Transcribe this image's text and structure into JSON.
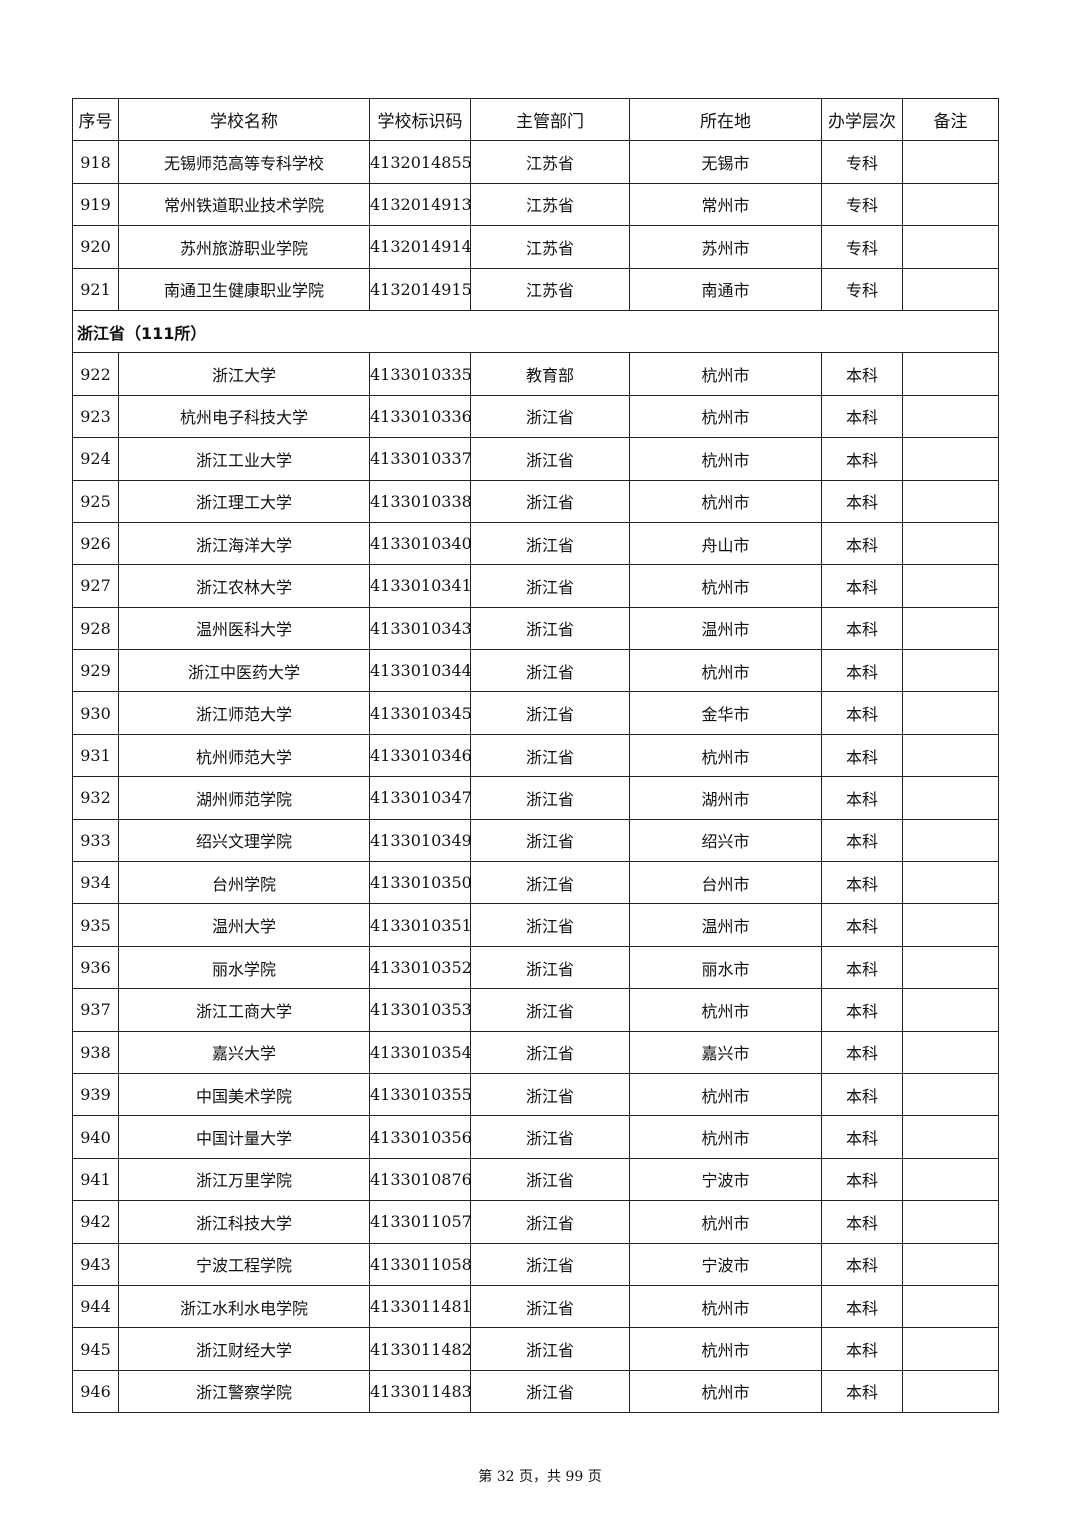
{
  "table": {
    "headers": [
      "序号",
      "学校名称",
      "学校标识码",
      "主管部门",
      "所在地",
      "办学层次",
      "备注"
    ],
    "rows_before": [
      [
        "918",
        "无锡师范高等专科学校",
        "4132014855",
        "江苏省",
        "无锡市",
        "专科",
        ""
      ],
      [
        "919",
        "常州铁道职业技术学院",
        "4132014913",
        "江苏省",
        "常州市",
        "专科",
        ""
      ],
      [
        "920",
        "苏州旅游职业学院",
        "4132014914",
        "江苏省",
        "苏州市",
        "专科",
        ""
      ],
      [
        "921",
        "南通卫生健康职业学院",
        "4132014915",
        "江苏省",
        "南通市",
        "专科",
        ""
      ]
    ],
    "section": "浙江省（111所）",
    "rows_after": [
      [
        "922",
        "浙江大学",
        "4133010335",
        "教育部",
        "杭州市",
        "本科",
        ""
      ],
      [
        "923",
        "杭州电子科技大学",
        "4133010336",
        "浙江省",
        "杭州市",
        "本科",
        ""
      ],
      [
        "924",
        "浙江工业大学",
        "4133010337",
        "浙江省",
        "杭州市",
        "本科",
        ""
      ],
      [
        "925",
        "浙江理工大学",
        "4133010338",
        "浙江省",
        "杭州市",
        "本科",
        ""
      ],
      [
        "926",
        "浙江海洋大学",
        "4133010340",
        "浙江省",
        "舟山市",
        "本科",
        ""
      ],
      [
        "927",
        "浙江农林大学",
        "4133010341",
        "浙江省",
        "杭州市",
        "本科",
        ""
      ],
      [
        "928",
        "温州医科大学",
        "4133010343",
        "浙江省",
        "温州市",
        "本科",
        ""
      ],
      [
        "929",
        "浙江中医药大学",
        "4133010344",
        "浙江省",
        "杭州市",
        "本科",
        ""
      ],
      [
        "930",
        "浙江师范大学",
        "4133010345",
        "浙江省",
        "金华市",
        "本科",
        ""
      ],
      [
        "931",
        "杭州师范大学",
        "4133010346",
        "浙江省",
        "杭州市",
        "本科",
        ""
      ],
      [
        "932",
        "湖州师范学院",
        "4133010347",
        "浙江省",
        "湖州市",
        "本科",
        ""
      ],
      [
        "933",
        "绍兴文理学院",
        "4133010349",
        "浙江省",
        "绍兴市",
        "本科",
        ""
      ],
      [
        "934",
        "台州学院",
        "4133010350",
        "浙江省",
        "台州市",
        "本科",
        ""
      ],
      [
        "935",
        "温州大学",
        "4133010351",
        "浙江省",
        "温州市",
        "本科",
        ""
      ],
      [
        "936",
        "丽水学院",
        "4133010352",
        "浙江省",
        "丽水市",
        "本科",
        ""
      ],
      [
        "937",
        "浙江工商大学",
        "4133010353",
        "浙江省",
        "杭州市",
        "本科",
        ""
      ],
      [
        "938",
        "嘉兴大学",
        "4133010354",
        "浙江省",
        "嘉兴市",
        "本科",
        ""
      ],
      [
        "939",
        "中国美术学院",
        "4133010355",
        "浙江省",
        "杭州市",
        "本科",
        ""
      ],
      [
        "940",
        "中国计量大学",
        "4133010356",
        "浙江省",
        "杭州市",
        "本科",
        ""
      ],
      [
        "941",
        "浙江万里学院",
        "4133010876",
        "浙江省",
        "宁波市",
        "本科",
        ""
      ],
      [
        "942",
        "浙江科技大学",
        "4133011057",
        "浙江省",
        "杭州市",
        "本科",
        ""
      ],
      [
        "943",
        "宁波工程学院",
        "4133011058",
        "浙江省",
        "宁波市",
        "本科",
        ""
      ],
      [
        "944",
        "浙江水利水电学院",
        "4133011481",
        "浙江省",
        "杭州市",
        "本科",
        ""
      ],
      [
        "945",
        "浙江财经大学",
        "4133011482",
        "浙江省",
        "杭州市",
        "本科",
        ""
      ],
      [
        "946",
        "浙江警察学院",
        "4133011483",
        "浙江省",
        "杭州市",
        "本科",
        ""
      ]
    ]
  },
  "footer": "第 32 页，共 99 页"
}
